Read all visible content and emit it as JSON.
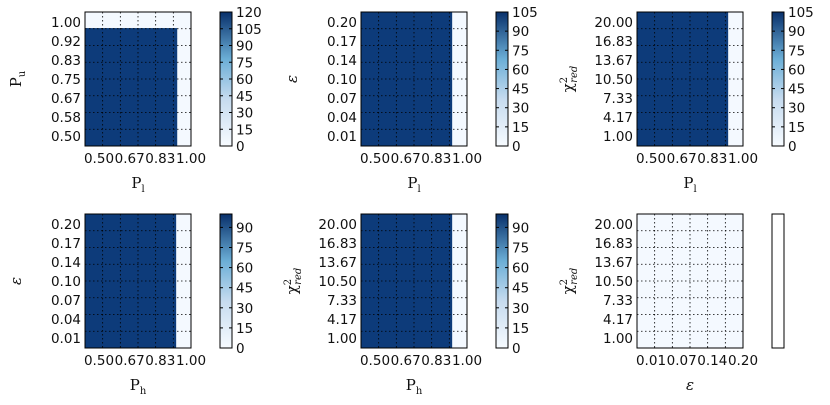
{
  "chart_data": [
    {
      "id": "p1",
      "type": "heatmap",
      "xlabel": "P_l",
      "ylabel": "P_u",
      "xticks": [
        "0.50",
        "0.67",
        "0.83",
        "1.00"
      ],
      "yticks": [
        "0.50",
        "0.58",
        "0.67",
        "0.75",
        "0.83",
        "0.92",
        "1.00"
      ],
      "fill": {
        "x_from": 0.0,
        "x_to": 0.87,
        "y_from": 0.0,
        "y_to": 0.88,
        "value": 120
      },
      "colorbar": {
        "ticks": [
          "0",
          "15",
          "30",
          "45",
          "60",
          "75",
          "90",
          "105",
          "120"
        ],
        "min": 0,
        "max": 120
      }
    },
    {
      "id": "p2",
      "type": "heatmap",
      "xlabel": "P_l",
      "ylabel": "ε",
      "xticks": [
        "0.50",
        "0.67",
        "0.83",
        "1.00"
      ],
      "yticks": [
        "0.01",
        "0.04",
        "0.07",
        "0.10",
        "0.14",
        "0.17",
        "0.20"
      ],
      "fill": {
        "x_from": 0.0,
        "x_to": 0.86,
        "y_from": 0.0,
        "y_to": 1.0,
        "value": 105
      },
      "colorbar": {
        "ticks": [
          "0",
          "15",
          "30",
          "45",
          "60",
          "75",
          "90",
          "105"
        ],
        "min": 0,
        "max": 105
      }
    },
    {
      "id": "p3",
      "type": "heatmap",
      "xlabel": "P_l",
      "ylabel": "χ²_red",
      "xticks": [
        "0.50",
        "0.67",
        "0.83",
        "1.00"
      ],
      "yticks": [
        "1.00",
        "4.17",
        "7.33",
        "10.50",
        "13.67",
        "16.83",
        "20.00"
      ],
      "fill": {
        "x_from": 0.0,
        "x_to": 0.86,
        "y_from": 0.0,
        "y_to": 1.0,
        "value": 105
      },
      "colorbar": {
        "ticks": [
          "0",
          "15",
          "30",
          "45",
          "60",
          "75",
          "90",
          "105"
        ],
        "min": 0,
        "max": 105
      }
    },
    {
      "id": "p4",
      "type": "heatmap",
      "xlabel": "P_h",
      "ylabel": "ε",
      "xticks": [
        "0.50",
        "0.67",
        "0.83",
        "1.00"
      ],
      "yticks": [
        "0.01",
        "0.04",
        "0.07",
        "0.10",
        "0.14",
        "0.17",
        "0.20"
      ],
      "fill": {
        "x_from": 0.0,
        "x_to": 0.86,
        "y_from": 0.0,
        "y_to": 1.0,
        "value": 100
      },
      "colorbar": {
        "ticks": [
          "0",
          "15",
          "30",
          "45",
          "60",
          "75",
          "90"
        ],
        "min": 0,
        "max": 100
      }
    },
    {
      "id": "p5",
      "type": "heatmap",
      "xlabel": "P_h",
      "ylabel": "χ²_red",
      "xticks": [
        "0.50",
        "0.67",
        "0.83",
        "1.00"
      ],
      "yticks": [
        "1.00",
        "4.17",
        "7.33",
        "10.50",
        "13.67",
        "16.83",
        "20.00"
      ],
      "fill": {
        "x_from": 0.0,
        "x_to": 0.86,
        "y_from": 0.0,
        "y_to": 1.0,
        "value": 100
      },
      "colorbar": {
        "ticks": [
          "0",
          "15",
          "30",
          "45",
          "60",
          "75",
          "90"
        ],
        "min": 0,
        "max": 100
      }
    },
    {
      "id": "p6",
      "type": "heatmap",
      "xlabel": "ε",
      "ylabel": "χ²_red",
      "xticks": [
        "0.01",
        "0.07",
        "0.14",
        "0.20"
      ],
      "yticks": [
        "1.00",
        "4.17",
        "7.33",
        "10.50",
        "13.67",
        "16.83",
        "20.00"
      ],
      "fill": {
        "x_from": 0.0,
        "x_to": 0.0,
        "y_from": 0.0,
        "y_to": 0.0,
        "value": 0
      },
      "colorbar": {
        "ticks": [],
        "min": 0,
        "max": 1
      }
    }
  ],
  "colors": {
    "high": "#0d3b7a",
    "low": "#f4f9ff",
    "grid": "#000000"
  }
}
